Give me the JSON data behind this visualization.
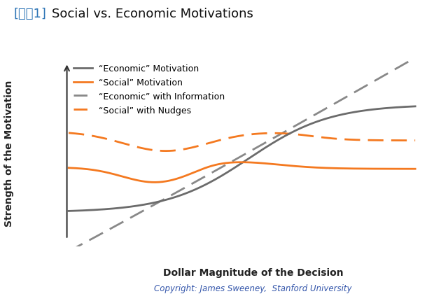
{
  "title_bracket": "[그림1]",
  "title_main": "Social vs. Economic Motivations",
  "xlabel": "Dollar Magnitude of the Decision",
  "ylabel": "Strength of the Motivation",
  "copyright": "Copyright: James Sweeney,  Stanford University",
  "background_color": "#ffffff",
  "legend_entries": [
    "“Economic” Motivation",
    "“Social” Motivation",
    "“Economic” with Information",
    "“Social” with Nudges"
  ],
  "colors": {
    "economic": "#6b6b6b",
    "social": "#f47920",
    "economic_info": "#888888",
    "social_nudge": "#f47920"
  },
  "title_bracket_color": "#2e75b6",
  "title_fontsize": 13,
  "axis_label_fontsize": 10,
  "legend_fontsize": 9,
  "copyright_fontsize": 8.5
}
